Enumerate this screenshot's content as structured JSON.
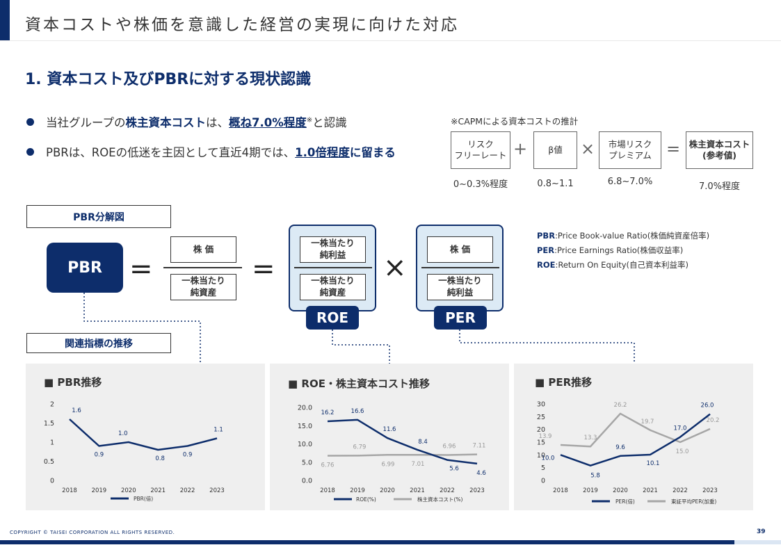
{
  "header": {
    "title": "資本コストや株価を意識した経営の実現に向けた対応"
  },
  "section": {
    "title": "1. 資本コスト及びPBRに対する現状認識"
  },
  "bullets": {
    "b1_pre": "当社グループの",
    "b1_hl1": "株主資本コスト",
    "b1_mid": "は、",
    "b1_hl2": "概ね7.0%程度",
    "b1_sup": "※",
    "b1_post": "と認識",
    "b2_pre": "PBRは、ROEの低迷を主因として直近4期では、",
    "b2_hl": "1.0倍程度",
    "b2_post": "に留まる"
  },
  "capm": {
    "note": "※CAPMによる資本コストの推計",
    "risk_free": "リスク\nフリーレート",
    "beta": "β値",
    "market_premium": "市場リスク\nプレミアム",
    "cost_of_equity": "株主資本コスト\n(参考値)",
    "op_plus": "+",
    "op_times": "×",
    "op_equals": "=",
    "risk_free_value": "0~0.3%程度",
    "beta_value": "0.8~1.1",
    "market_premium_value": "6.8~7.0%",
    "cost_of_equity_value": "7.0%程度"
  },
  "decomposition": {
    "label": "PBR分解図",
    "pbr": "PBR",
    "eq": "=",
    "times": "×",
    "stock_price": "株 価",
    "bvps": "一株当たり\n純資産",
    "eps": "一株当たり\n純利益",
    "roe_tag": "ROE",
    "per_tag": "PER"
  },
  "definitions": [
    {
      "abbr": "PBR",
      "text": ":Price Book-value Ratio(株価純資産倍率)"
    },
    {
      "abbr": "PER",
      "text": ":Price Earnings Ratio(株価収益率)"
    },
    {
      "abbr": "ROE",
      "text": ":Return On Equity(自己資本利益率)"
    }
  ],
  "indicators_label": "関連指標の推移",
  "chart_data": [
    {
      "type": "line",
      "title": "■ PBR推移",
      "categories": [
        "2018",
        "2019",
        "2020",
        "2021",
        "2022",
        "2023"
      ],
      "series": [
        {
          "name": "PBR(倍)",
          "values": [
            1.6,
            0.9,
            1.0,
            0.8,
            0.9,
            1.1
          ],
          "color": "#0d2d6b"
        }
      ],
      "yticks": [
        "0",
        "0.5",
        "1",
        "1.5",
        "2"
      ],
      "ylim": [
        0,
        2
      ],
      "legend": "bottom"
    },
    {
      "type": "line",
      "title": "■ ROE・株主資本コスト推移",
      "categories": [
        "2018",
        "2019",
        "2020",
        "2021",
        "2022",
        "2023"
      ],
      "series": [
        {
          "name": "ROE(%)",
          "values": [
            16.2,
            16.6,
            11.6,
            8.4,
            5.6,
            4.6
          ],
          "color": "#0d2d6b"
        },
        {
          "name": "株主資本コスト(%)",
          "values": [
            6.76,
            6.79,
            6.99,
            7.01,
            6.96,
            7.11
          ],
          "color": "#a6a6a6"
        }
      ],
      "yticks": [
        "0.0",
        "5.0",
        "10.0",
        "15.0",
        "20.0"
      ],
      "ylim": [
        0,
        20
      ],
      "legend": "bottom"
    },
    {
      "type": "line",
      "title": "■ PER推移",
      "categories": [
        "2018",
        "2019",
        "2020",
        "2021",
        "2022",
        "2023"
      ],
      "series": [
        {
          "name": "PER(倍)",
          "values": [
            10.0,
            5.8,
            9.6,
            10.1,
            17.0,
            26.0
          ],
          "color": "#0d2d6b"
        },
        {
          "name": "東証平均PER(加重)",
          "values": [
            13.9,
            13.3,
            26.2,
            19.7,
            15.0,
            20.2
          ],
          "color": "#a6a6a6"
        }
      ],
      "yticks": [
        "0",
        "5",
        "10",
        "15",
        "20",
        "25",
        "30"
      ],
      "ylim": [
        0,
        30
      ],
      "legend": "bottom"
    }
  ],
  "footer": {
    "copyright": "COPYRIGHT © TAISEI CORPORATION ALL RIGHTS RESERVED.",
    "page": "39"
  }
}
